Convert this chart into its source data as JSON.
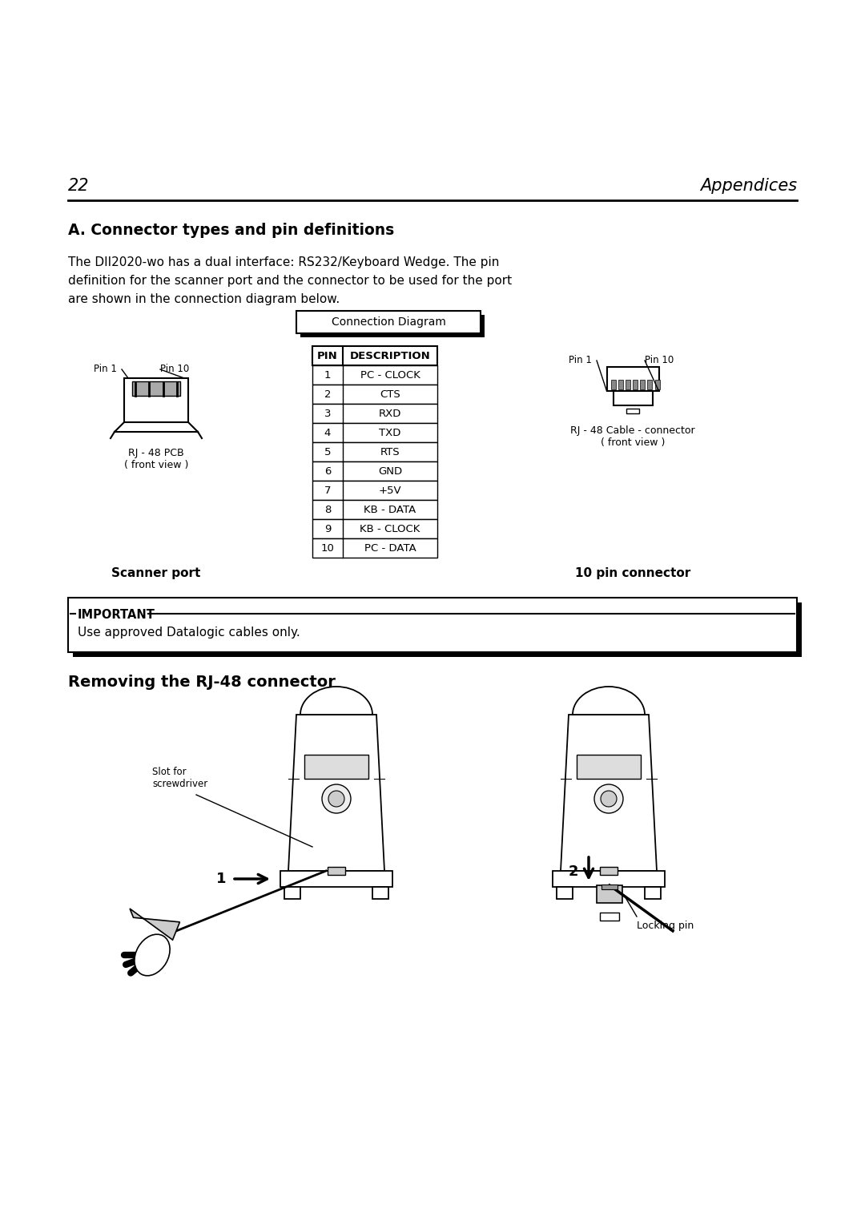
{
  "page_number": "22",
  "page_header_right": "Appendices",
  "section_title": "A. Connector types and pin definitions",
  "body_line1": "The DII2020-wo has a dual interface: RS232/Keyboard Wedge. The pin",
  "body_line2": "definition for the scanner port and the connector to be used for the port",
  "body_line3": "are shown in the connection diagram below.",
  "connection_diagram_label": "Connection Diagram",
  "scanner_port_label": "Scanner port",
  "ten_pin_connector_label": "10 pin connector",
  "rj48_pcb_line1": "RJ - 48 PCB",
  "rj48_pcb_line2": "( front view )",
  "rj48_cable_line1": "RJ - 48 Cable - connector",
  "rj48_cable_line2": "( front view )",
  "pin1_label": "Pin 1",
  "pin10_label": "Pin 10",
  "pin_table_headers": [
    "PIN",
    "DESCRIPTION"
  ],
  "pin_table_rows": [
    [
      "1",
      "PC - CLOCK"
    ],
    [
      "2",
      "CTS"
    ],
    [
      "3",
      "RXD"
    ],
    [
      "4",
      "TXD"
    ],
    [
      "5",
      "RTS"
    ],
    [
      "6",
      "GND"
    ],
    [
      "7",
      "+5V"
    ],
    [
      "8",
      "KB - DATA"
    ],
    [
      "9",
      "KB - CLOCK"
    ],
    [
      "10",
      "PC - DATA"
    ]
  ],
  "important_label": "IMPORTANT",
  "important_text": "Use approved Datalogic cables only.",
  "section2_title": "Removing the RJ-48 connector",
  "slot_label": "Slot for\nscrewdriver",
  "step1_label": "1",
  "step2_label": "2",
  "locking_pin_label": "Locking pin",
  "bg_color": "#ffffff",
  "text_color": "#000000"
}
